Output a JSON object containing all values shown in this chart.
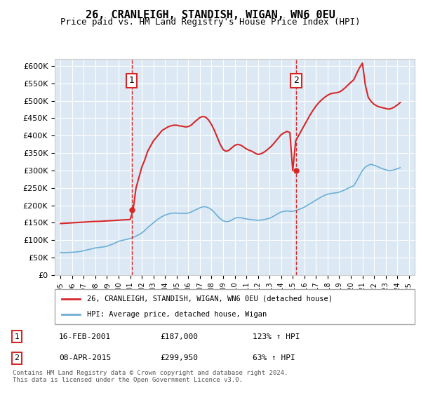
{
  "title": "26, CRANLEIGH, STANDISH, WIGAN, WN6 0EU",
  "subtitle": "Price paid vs. HM Land Registry's House Price Index (HPI)",
  "background_color": "#dce9f5",
  "plot_bg_color": "#dce9f5",
  "ylabel_ticks": [
    "£0",
    "£50K",
    "£100K",
    "£150K",
    "£200K",
    "£250K",
    "£300K",
    "£350K",
    "£400K",
    "£450K",
    "£500K",
    "£550K",
    "£600K"
  ],
  "ytick_values": [
    0,
    50000,
    100000,
    150000,
    200000,
    250000,
    300000,
    350000,
    400000,
    450000,
    500000,
    550000,
    600000
  ],
  "xlim_start": 1994.5,
  "xlim_end": 2025.5,
  "ylim_min": 0,
  "ylim_max": 620000,
  "sale1_date": "16-FEB-2001",
  "sale1_price": 187000,
  "sale1_label": "1",
  "sale1_x": 2001.12,
  "sale2_date": "08-APR-2015",
  "sale2_price": 299950,
  "sale2_label": "2",
  "sale2_x": 2015.28,
  "legend_line1": "26, CRANLEIGH, STANDISH, WIGAN, WN6 0EU (detached house)",
  "legend_line2": "HPI: Average price, detached house, Wigan",
  "table_row1": [
    "1",
    "16-FEB-2001",
    "£187,000",
    "123% ↑ HPI"
  ],
  "table_row2": [
    "2",
    "08-APR-2015",
    "£299,950",
    "63% ↑ HPI"
  ],
  "footnote": "Contains HM Land Registry data © Crown copyright and database right 2024.\nThis data is licensed under the Open Government Licence v3.0.",
  "hpi_color": "#6baed6",
  "sale_color": "#d62728",
  "hpi_data_x": [
    1995,
    1995.25,
    1995.5,
    1995.75,
    1996,
    1996.25,
    1996.5,
    1996.75,
    1997,
    1997.25,
    1997.5,
    1997.75,
    1998,
    1998.25,
    1998.5,
    1998.75,
    1999,
    1999.25,
    1999.5,
    1999.75,
    2000,
    2000.25,
    2000.5,
    2000.75,
    2001,
    2001.25,
    2001.5,
    2001.75,
    2002,
    2002.25,
    2002.5,
    2002.75,
    2003,
    2003.25,
    2003.5,
    2003.75,
    2004,
    2004.25,
    2004.5,
    2004.75,
    2005,
    2005.25,
    2005.5,
    2005.75,
    2006,
    2006.25,
    2006.5,
    2006.75,
    2007,
    2007.25,
    2007.5,
    2007.75,
    2008,
    2008.25,
    2008.5,
    2008.75,
    2009,
    2009.25,
    2009.5,
    2009.75,
    2010,
    2010.25,
    2010.5,
    2010.75,
    2011,
    2011.25,
    2011.5,
    2011.75,
    2012,
    2012.25,
    2012.5,
    2012.75,
    2013,
    2013.25,
    2013.5,
    2013.75,
    2014,
    2014.25,
    2014.5,
    2014.75,
    2015,
    2015.25,
    2015.5,
    2015.75,
    2016,
    2016.25,
    2016.5,
    2016.75,
    2017,
    2017.25,
    2017.5,
    2017.75,
    2018,
    2018.25,
    2018.5,
    2018.75,
    2019,
    2019.25,
    2019.5,
    2019.75,
    2020,
    2020.25,
    2020.5,
    2020.75,
    2021,
    2021.25,
    2021.5,
    2021.75,
    2022,
    2022.25,
    2022.5,
    2022.75,
    2023,
    2023.25,
    2023.5,
    2023.75,
    2024,
    2024.25
  ],
  "hpi_data_y": [
    65000,
    64000,
    64500,
    65000,
    65500,
    66000,
    67000,
    68000,
    70000,
    72000,
    74000,
    76000,
    78000,
    79000,
    80000,
    81000,
    83000,
    86000,
    89000,
    93000,
    97000,
    99000,
    101000,
    103000,
    105000,
    108000,
    112000,
    116000,
    121000,
    128000,
    136000,
    143000,
    150000,
    157000,
    163000,
    168000,
    172000,
    175000,
    177000,
    178000,
    178000,
    177000,
    177000,
    177000,
    178000,
    181000,
    185000,
    189000,
    193000,
    196000,
    196000,
    193000,
    188000,
    180000,
    170000,
    162000,
    156000,
    153000,
    154000,
    158000,
    163000,
    165000,
    165000,
    163000,
    161000,
    160000,
    159000,
    158000,
    157000,
    158000,
    159000,
    161000,
    163000,
    167000,
    172000,
    177000,
    181000,
    183000,
    184000,
    183000,
    183000,
    185000,
    188000,
    191000,
    195000,
    200000,
    205000,
    210000,
    215000,
    220000,
    225000,
    229000,
    232000,
    234000,
    235000,
    236000,
    238000,
    241000,
    245000,
    249000,
    253000,
    256000,
    270000,
    285000,
    300000,
    310000,
    315000,
    318000,
    315000,
    312000,
    308000,
    305000,
    302000,
    300000,
    300000,
    302000,
    305000,
    308000
  ],
  "sale_data_x": [
    1995,
    1995.25,
    1995.5,
    1995.75,
    1996,
    1996.25,
    1996.5,
    1996.75,
    1997,
    1997.25,
    1997.5,
    1997.75,
    1998,
    1998.25,
    1998.5,
    1998.75,
    1999,
    1999.25,
    1999.5,
    1999.75,
    2000,
    2000.25,
    2000.5,
    2000.75,
    2001,
    2001.25,
    2001.5,
    2001.75,
    2002,
    2002.25,
    2002.5,
    2002.75,
    2003,
    2003.25,
    2003.5,
    2003.75,
    2004,
    2004.25,
    2004.5,
    2004.75,
    2005,
    2005.25,
    2005.5,
    2005.75,
    2006,
    2006.25,
    2006.5,
    2006.75,
    2007,
    2007.25,
    2007.5,
    2007.75,
    2008,
    2008.25,
    2008.5,
    2008.75,
    2009,
    2009.25,
    2009.5,
    2009.75,
    2010,
    2010.25,
    2010.5,
    2010.75,
    2011,
    2011.25,
    2011.5,
    2011.75,
    2012,
    2012.25,
    2012.5,
    2012.75,
    2013,
    2013.25,
    2013.5,
    2013.75,
    2014,
    2014.25,
    2014.5,
    2014.75,
    2015,
    2015.25,
    2015.5,
    2015.75,
    2016,
    2016.25,
    2016.5,
    2016.75,
    2017,
    2017.25,
    2017.5,
    2017.75,
    2018,
    2018.25,
    2018.5,
    2018.75,
    2019,
    2019.25,
    2019.5,
    2019.75,
    2020,
    2020.25,
    2020.5,
    2020.75,
    2021,
    2021.25,
    2021.5,
    2021.75,
    2022,
    2022.25,
    2022.5,
    2022.75,
    2023,
    2023.25,
    2023.5,
    2023.75,
    2024,
    2024.25
  ],
  "sale_data_y": [
    148000,
    148500,
    149000,
    149500,
    150000,
    150500,
    151000,
    151500,
    152000,
    152500,
    153000,
    153500,
    154000,
    154000,
    154500,
    155000,
    155500,
    156000,
    156500,
    157000,
    157500,
    158000,
    158500,
    159000,
    159500,
    187000,
    250000,
    280000,
    310000,
    330000,
    355000,
    370000,
    385000,
    395000,
    405000,
    415000,
    420000,
    425000,
    428000,
    430000,
    430000,
    428000,
    427000,
    425000,
    426000,
    430000,
    438000,
    445000,
    452000,
    455000,
    453000,
    445000,
    432000,
    415000,
    395000,
    375000,
    360000,
    355000,
    358000,
    365000,
    372000,
    375000,
    373000,
    368000,
    362000,
    358000,
    355000,
    350000,
    346000,
    348000,
    352000,
    358000,
    365000,
    373000,
    383000,
    393000,
    403000,
    408000,
    412000,
    409000,
    299950,
    385000,
    400000,
    415000,
    430000,
    445000,
    460000,
    473000,
    485000,
    495000,
    503000,
    510000,
    516000,
    520000,
    522000,
    523000,
    525000,
    530000,
    537000,
    545000,
    553000,
    560000,
    578000,
    595000,
    608000,
    545000,
    510000,
    498000,
    490000,
    485000,
    482000,
    480000,
    478000,
    476000,
    478000,
    482000,
    488000,
    495000
  ],
  "xtick_years": [
    1995,
    1996,
    1997,
    1998,
    1999,
    2000,
    2001,
    2002,
    2003,
    2004,
    2005,
    2006,
    2007,
    2008,
    2009,
    2010,
    2011,
    2012,
    2013,
    2014,
    2015,
    2016,
    2017,
    2018,
    2019,
    2020,
    2021,
    2022,
    2023,
    2024,
    2025
  ]
}
